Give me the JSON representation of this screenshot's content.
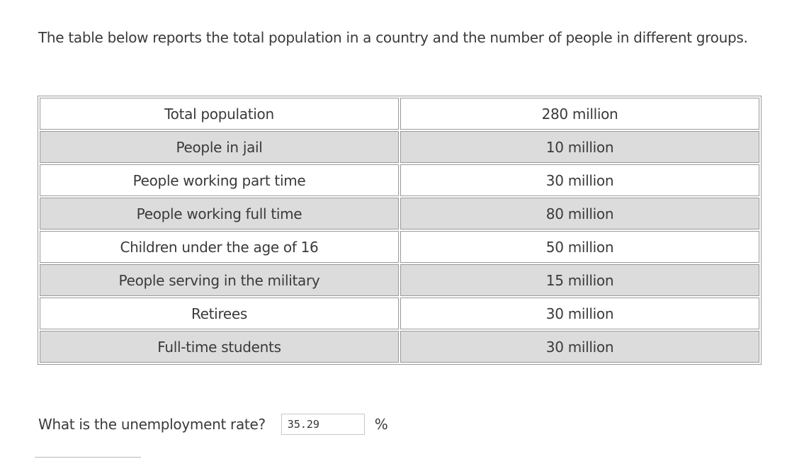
{
  "intro_text": "The table below reports the total population in a country and the number of people in different groups.",
  "table": {
    "rows": [
      {
        "label": "Total population",
        "value": "280 million"
      },
      {
        "label": "People in jail",
        "value": "10 million"
      },
      {
        "label": "People working part time",
        "value": "30 million"
      },
      {
        "label": "People working full time",
        "value": "80 million"
      },
      {
        "label": "Children under the age of 16",
        "value": "50 million"
      },
      {
        "label": "People serving in the military",
        "value": "15 million"
      },
      {
        "label": "Retirees",
        "value": "30 million"
      },
      {
        "label": "Full-time students",
        "value": "30 million"
      }
    ]
  },
  "question": {
    "text": "What is the unemployment rate?",
    "answer_value": "35.29",
    "unit": "%"
  }
}
